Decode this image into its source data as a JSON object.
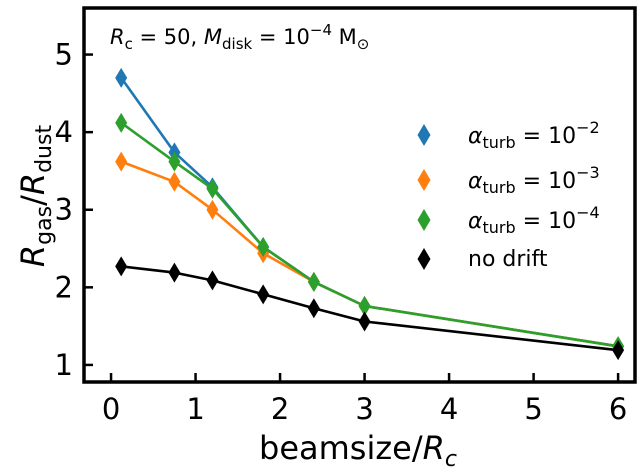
{
  "chart_data": {
    "type": "line",
    "title": "",
    "annotation": "R_c = 50, M_disk = 10^-4 M_sun",
    "xlabel": "beamsize/R_c",
    "ylabel": "R_gas/R_dust",
    "xlim": [
      -0.32,
      6.2
    ],
    "ylim": [
      0.78,
      5.6
    ],
    "x_ticks": [
      0,
      1,
      2,
      3,
      4,
      5,
      6
    ],
    "x_tick_labels": [
      "0",
      "1",
      "2",
      "3",
      "4",
      "5",
      "6"
    ],
    "y_ticks": [
      1,
      2,
      3,
      4,
      5
    ],
    "y_tick_labels": [
      "1",
      "2",
      "3",
      "4",
      "5"
    ],
    "grid": false,
    "legend_position": "right",
    "marker": "diamond",
    "x": [
      0.12,
      0.75,
      1.2,
      1.8,
      2.4,
      3.0,
      6.0
    ],
    "series": [
      {
        "name": "α_turb = 10^-2",
        "color": "#1f77b4",
        "values": [
          4.7,
          3.74,
          3.29,
          2.52,
          2.07,
          1.76,
          1.24
        ]
      },
      {
        "name": "α_turb = 10^-3",
        "color": "#ff7f0e",
        "values": [
          3.62,
          3.36,
          3.0,
          2.44,
          2.07,
          1.76,
          1.24
        ]
      },
      {
        "name": "α_turb = 10^-4",
        "color": "#2ca02c",
        "values": [
          4.12,
          3.62,
          3.27,
          2.52,
          2.07,
          1.76,
          1.24
        ]
      },
      {
        "name": "no drift",
        "color": "#000000",
        "values": [
          2.27,
          2.19,
          2.09,
          1.91,
          1.73,
          1.56,
          1.19
        ]
      }
    ]
  }
}
